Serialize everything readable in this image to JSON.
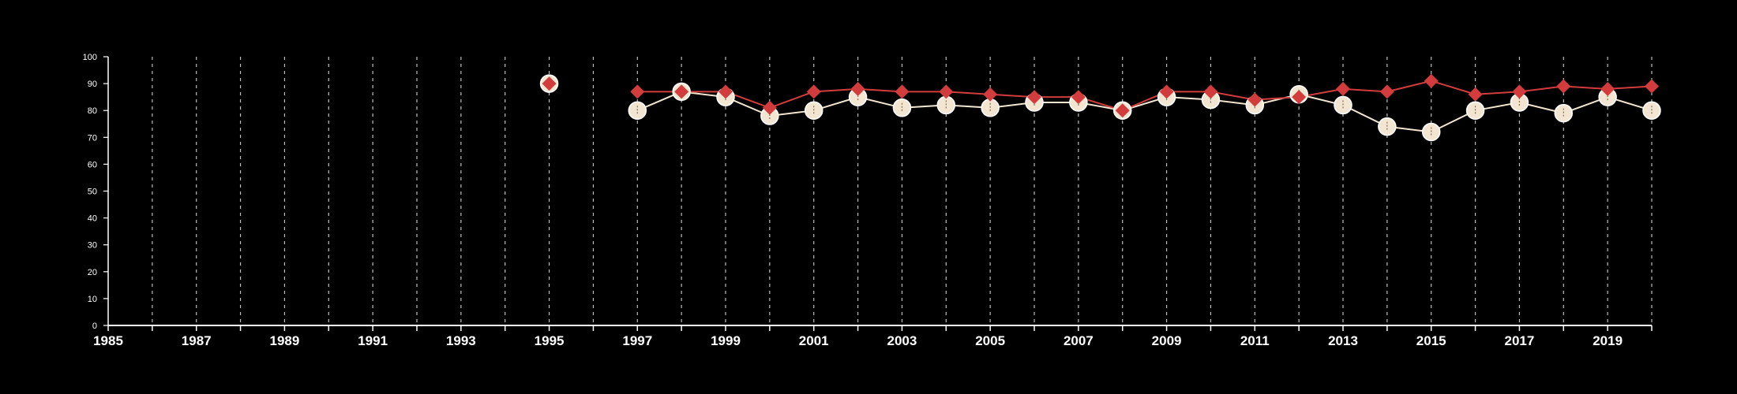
{
  "chart_data": {
    "type": "line",
    "title": "",
    "xlabel": "",
    "ylabel": "",
    "xlim": [
      1985,
      2020
    ],
    "ylim": [
      0,
      100
    ],
    "y_ticks": [
      "0",
      "10",
      "20",
      "30",
      "40",
      "50",
      "60",
      "70",
      "80",
      "90",
      "100"
    ],
    "x_ticks": [
      "1985",
      "1987",
      "1989",
      "1991",
      "1993",
      "1995",
      "1997",
      "1999",
      "2001",
      "2003",
      "2005",
      "2007",
      "2009",
      "2011",
      "2013",
      "2015",
      "2017",
      "2019"
    ],
    "grid": "vertical dashed, one per year",
    "legend": "none",
    "series": [
      {
        "color": "#f2e6d2",
        "marker": "circle",
        "points": [
          [
            1995,
            90
          ],
          [
            1997,
            80
          ],
          [
            1998,
            87
          ],
          [
            1999,
            85
          ],
          [
            2000,
            78
          ],
          [
            2001,
            80
          ],
          [
            2002,
            85
          ],
          [
            2003,
            81
          ],
          [
            2004,
            82
          ],
          [
            2005,
            81
          ],
          [
            2006,
            83
          ],
          [
            2007,
            83
          ],
          [
            2008,
            80
          ],
          [
            2009,
            85
          ],
          [
            2010,
            84
          ],
          [
            2011,
            82
          ],
          [
            2012,
            86
          ],
          [
            2013,
            82
          ],
          [
            2014,
            74
          ],
          [
            2015,
            72
          ],
          [
            2016,
            80
          ],
          [
            2017,
            83
          ],
          [
            2018,
            79
          ],
          [
            2019,
            85
          ],
          [
            2020,
            80
          ]
        ]
      },
      {
        "color": "#d23c3c",
        "marker": "diamond",
        "points": [
          [
            1995,
            90
          ],
          [
            1997,
            87
          ],
          [
            1998,
            87
          ],
          [
            1999,
            87
          ],
          [
            2000,
            81
          ],
          [
            2001,
            87
          ],
          [
            2002,
            88
          ],
          [
            2003,
            87
          ],
          [
            2004,
            87
          ],
          [
            2005,
            86
          ],
          [
            2006,
            85
          ],
          [
            2007,
            85
          ],
          [
            2008,
            80
          ],
          [
            2009,
            87
          ],
          [
            2010,
            87
          ],
          [
            2011,
            84
          ],
          [
            2012,
            85
          ],
          [
            2013,
            88
          ],
          [
            2014,
            87
          ],
          [
            2015,
            91
          ],
          [
            2016,
            86
          ],
          [
            2017,
            87
          ],
          [
            2018,
            89
          ],
          [
            2019,
            88
          ],
          [
            2020,
            89
          ]
        ]
      }
    ]
  }
}
